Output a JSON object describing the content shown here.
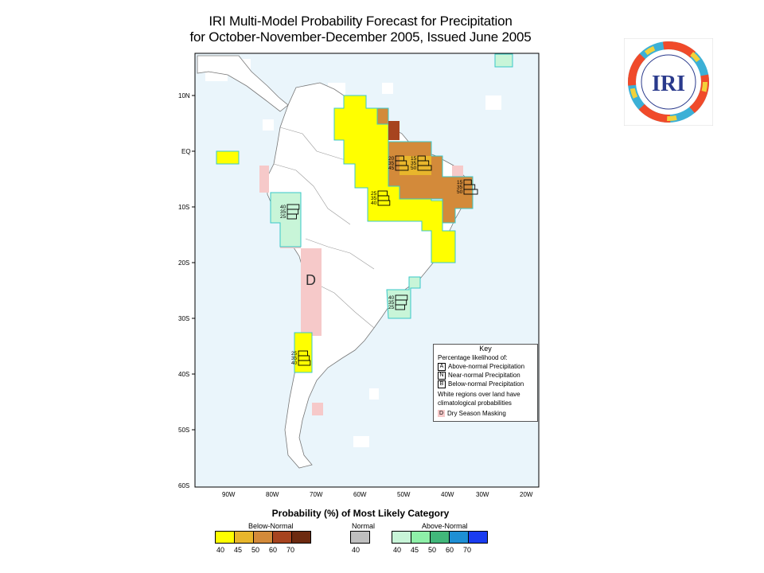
{
  "title": {
    "line1": "IRI Multi-Model Probability Forecast for Precipitation",
    "line2": "for October-November-December 2005, Issued June 2005"
  },
  "logo": {
    "text": "IRI"
  },
  "lat_labels": [
    "10N",
    "EQ",
    "10S",
    "20S",
    "30S",
    "40S",
    "50S",
    "60S"
  ],
  "lon_labels": [
    "90W",
    "80W",
    "70W",
    "60W",
    "50W",
    "40W",
    "30W",
    "20W"
  ],
  "map_annotation": "D",
  "forecast_boxes": [
    {
      "region": "Ecuador/Peru coast",
      "values": [
        "40",
        "35",
        "25"
      ]
    },
    {
      "region": "Northern Brazil west",
      "values": [
        "20",
        "35",
        "45"
      ]
    },
    {
      "region": "Northeast Brazil",
      "values": [
        "15",
        "35",
        "50"
      ]
    },
    {
      "region": "Eastern Brazil tip",
      "values": [
        "15",
        "35",
        "50"
      ]
    },
    {
      "region": "Central Brazil",
      "values": [
        "25",
        "35",
        "40"
      ]
    },
    {
      "region": "Southern Brazil",
      "values": [
        "40",
        "35",
        "25"
      ]
    },
    {
      "region": "Central Chile",
      "values": [
        "25",
        "35",
        "40"
      ]
    }
  ],
  "key": {
    "title": "Key",
    "subtitle": "Percentage likelihood of:",
    "items": [
      {
        "letter": "A",
        "label": "Above-normal Precipitation"
      },
      {
        "letter": "N",
        "label": "Near-normal Precipitation"
      },
      {
        "letter": "B",
        "label": "Below-normal Precipitation"
      }
    ],
    "note": "White regions over land have climatological probabilities",
    "mask": {
      "letter": "D",
      "label": "Dry Season Masking"
    }
  },
  "legend": {
    "title": "Probability (%) of Most Likely Category",
    "below": {
      "label": "Below-Normal",
      "ticks": [
        "40",
        "45",
        "50",
        "60",
        "70"
      ],
      "colors": [
        "#ffff00",
        "#e8b62c",
        "#d38a3a",
        "#a7441f",
        "#6d2a10"
      ]
    },
    "normal": {
      "label": "Normal",
      "ticks": [
        "40"
      ],
      "colors": [
        "#bfbfbf"
      ]
    },
    "above": {
      "label": "Above-Normal",
      "ticks": [
        "40",
        "45",
        "50",
        "60",
        "70"
      ],
      "colors": [
        "#c8f5d8",
        "#8ef0a8",
        "#41b77a",
        "#1e8fd4",
        "#1a3cf0"
      ]
    }
  },
  "colors": {
    "ocean": "#eaf5fb",
    "mask": "#f6c9c9",
    "above_light": "#c8f5d8"
  }
}
